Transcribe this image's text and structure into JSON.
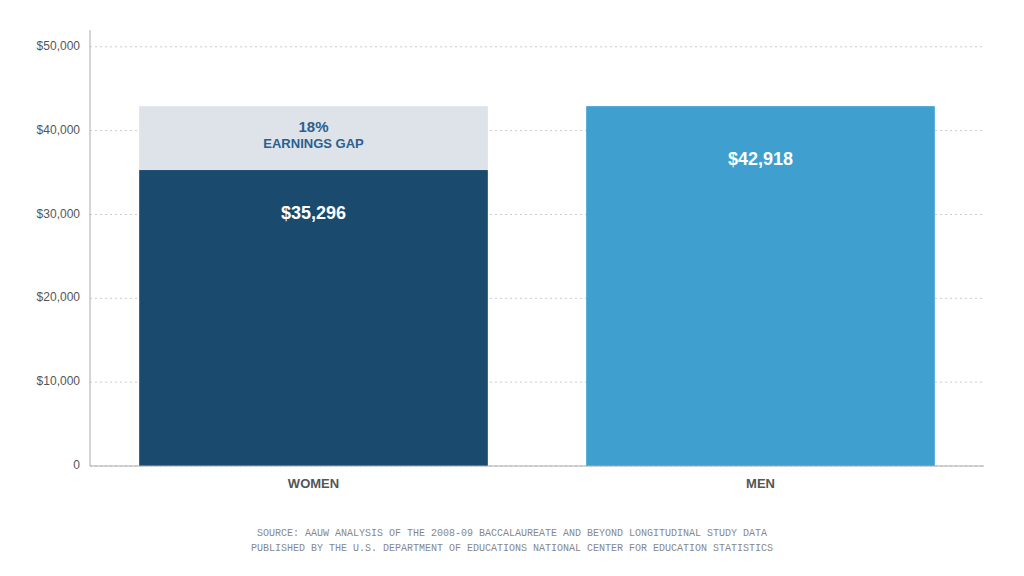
{
  "chart_data": {
    "type": "bar",
    "categories": [
      "WOMEN",
      "MEN"
    ],
    "values": [
      35296,
      42918
    ],
    "value_labels": [
      "$35,296",
      "$42,918"
    ],
    "colors": [
      "#1a4a6e",
      "#3fa0d0"
    ],
    "data_labels": true,
    "annotations": [
      "18%",
      "EARNINGS GAP"
    ],
    "ylim": [
      0,
      52000
    ],
    "yticks": [
      0,
      {
        "value": 10000,
        "label": "$10,000"
      },
      {
        "value": 20000,
        "label": "$20,000"
      },
      {
        "value": 30000,
        "label": "$30,000"
      },
      {
        "value": 40000,
        "label": "$40,000"
      },
      {
        "value": 50000,
        "label": "$50,000"
      }
    ],
    "grid": true,
    "source": [
      "SOURCE: AAUW ANALYSIS OF THE 2008-09 BACCALAUREATE AND BEYOND LONGITUDINAL STUDY DATA",
      "PUBLISHED BY THE U.S. DEPARTMENT OF EDUCATIONS NATIONAL CENTER FOR EDUCATION STATISTICS"
    ]
  }
}
